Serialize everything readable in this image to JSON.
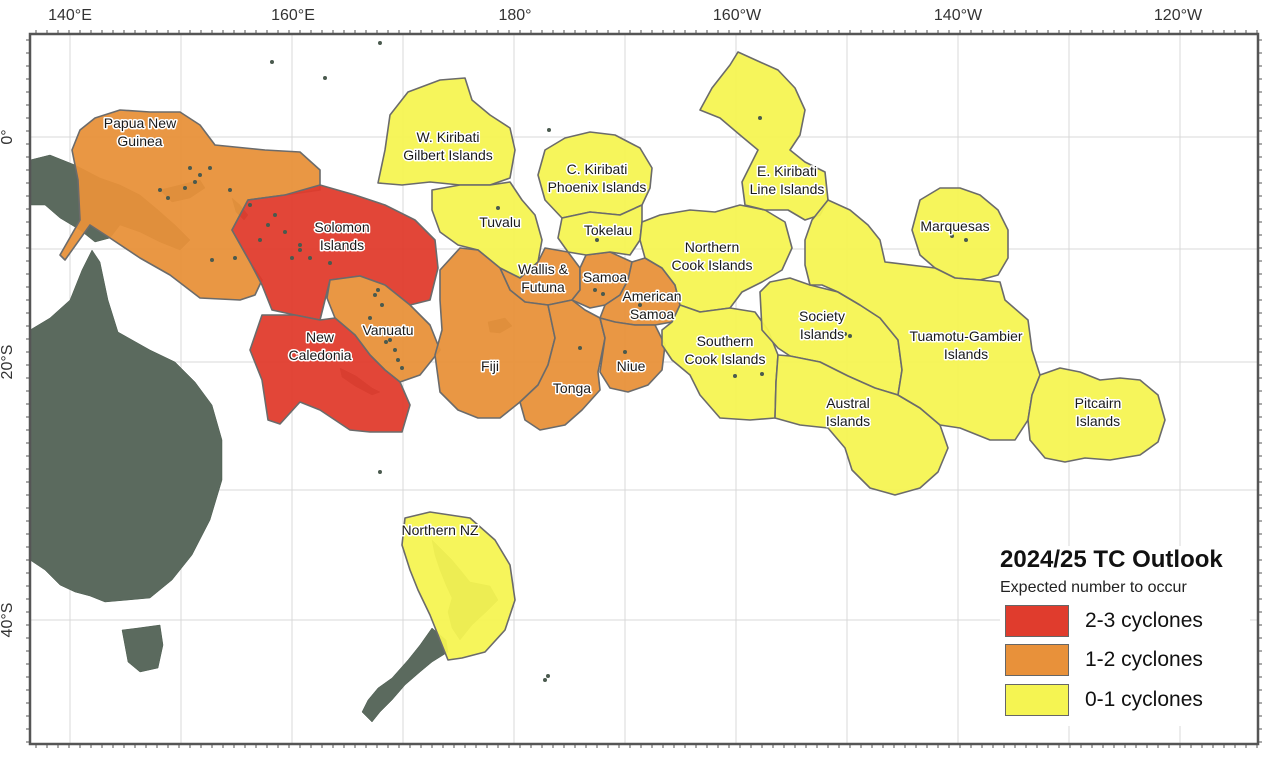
{
  "map": {
    "longitude_ticks": [
      "140°E",
      "160°E",
      "180°",
      "160°W",
      "140°W",
      "120°W"
    ],
    "latitude_ticks": [
      "0°",
      "20°S",
      "40°S"
    ],
    "colors": {
      "land": "#5b6a5e",
      "ocean": "#ffffff",
      "grid": "#d9d9d9",
      "border": "#6b6b6b"
    }
  },
  "regions": [
    {
      "name": "Papua New Guinea",
      "label_lines": [
        "Papua New",
        "Guinea"
      ],
      "category": "1-2 cyclones"
    },
    {
      "name": "Solomon Islands",
      "label_lines": [
        "Solomon",
        "Islands"
      ],
      "category": "2-3 cyclones"
    },
    {
      "name": "Vanuatu",
      "label_lines": [
        "Vanuatu"
      ],
      "category": "1-2 cyclones"
    },
    {
      "name": "New Caledonia",
      "label_lines": [
        "New",
        "Caledonia"
      ],
      "category": "2-3 cyclones"
    },
    {
      "name": "W. Kiribati",
      "label_lines": [
        "W. Kiribati",
        "Gilbert Islands"
      ],
      "category": "0-1 cyclones"
    },
    {
      "name": "Tuvalu",
      "label_lines": [
        "Tuvalu"
      ],
      "category": "0-1 cyclones"
    },
    {
      "name": "Wallis & Futuna",
      "label_lines": [
        "Wallis &",
        "Futuna"
      ],
      "category": "1-2 cyclones"
    },
    {
      "name": "Fiji",
      "label_lines": [
        "Fiji"
      ],
      "category": "1-2 cyclones"
    },
    {
      "name": "Tonga",
      "label_lines": [
        "Tonga"
      ],
      "category": "1-2 cyclones"
    },
    {
      "name": "Samoa",
      "label_lines": [
        "Samoa"
      ],
      "category": "1-2 cyclones"
    },
    {
      "name": "American Samoa",
      "label_lines": [
        "American",
        "Samoa"
      ],
      "category": "1-2 cyclones"
    },
    {
      "name": "Niue",
      "label_lines": [
        "Niue"
      ],
      "category": "1-2 cyclones"
    },
    {
      "name": "C. Kiribati",
      "label_lines": [
        "C. Kiribati",
        "Phoenix Islands"
      ],
      "category": "0-1 cyclones"
    },
    {
      "name": "Tokelau",
      "label_lines": [
        "Tokelau"
      ],
      "category": "0-1 cyclones"
    },
    {
      "name": "Northern Cook Islands",
      "label_lines": [
        "Northern",
        "Cook Islands"
      ],
      "category": "0-1 cyclones"
    },
    {
      "name": "Southern Cook Islands",
      "label_lines": [
        "Southern",
        "Cook Islands"
      ],
      "category": "0-1 cyclones"
    },
    {
      "name": "E. Kiribati",
      "label_lines": [
        "E. Kiribati",
        "Line Islands"
      ],
      "category": "0-1 cyclones"
    },
    {
      "name": "Society Islands",
      "label_lines": [
        "Society",
        "Islands"
      ],
      "category": "0-1 cyclones"
    },
    {
      "name": "Austral Islands",
      "label_lines": [
        "Austral",
        "Islands"
      ],
      "category": "0-1 cyclones"
    },
    {
      "name": "Marquesas",
      "label_lines": [
        "Marquesas"
      ],
      "category": "0-1 cyclones"
    },
    {
      "name": "Tuamotu-Gambier Islands",
      "label_lines": [
        "Tuamotu-Gambier",
        "Islands"
      ],
      "category": "0-1 cyclones"
    },
    {
      "name": "Pitcairn Islands",
      "label_lines": [
        "Pitcairn",
        "Islands"
      ],
      "category": "0-1 cyclones"
    },
    {
      "name": "Northern NZ",
      "label_lines": [
        "Northern NZ"
      ],
      "category": "0-1 cyclones"
    }
  ],
  "legend": {
    "title": "2024/25 TC Outlook",
    "subtitle": "Expected number to occur",
    "items": [
      {
        "label": "2-3 cyclones",
        "color": "#e03c2d"
      },
      {
        "label": "1-2 cyclones",
        "color": "#e8913a"
      },
      {
        "label": "0-1 cyclones",
        "color": "#f5f452"
      }
    ]
  }
}
